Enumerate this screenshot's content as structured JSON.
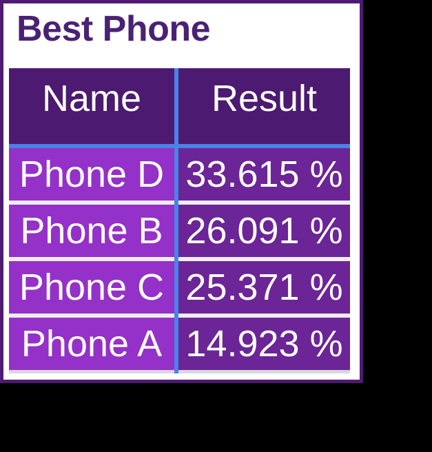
{
  "widget": {
    "title": "Best Phone"
  },
  "table": {
    "headers": {
      "name": "Name",
      "result": "Result"
    },
    "rows": [
      {
        "name": "Phone D",
        "result": "33.615 %"
      },
      {
        "name": "Phone B",
        "result": "26.091 %"
      },
      {
        "name": "Phone C",
        "result": "25.371 %"
      },
      {
        "name": "Phone A",
        "result": "14.923 %"
      }
    ]
  },
  "colors": {
    "canvas_background": "#000000",
    "widget_background": "#FFFFFF",
    "widget_border": "#4E1A73",
    "title_text": "#4A2173",
    "header_background": "#4C1A71",
    "name_cell_background": "#9431C8",
    "result_cell_background": "#6B2596",
    "divider_blue": "#4A82E8",
    "row_separator": "#EFEDF2",
    "bottom_line": "#DAD8DE",
    "cell_text": "#FFFFFF"
  },
  "chart_data": {
    "type": "table",
    "title": "Best Phone",
    "columns": [
      "Name",
      "Result"
    ],
    "rows": [
      [
        "Phone D",
        "33.615 %"
      ],
      [
        "Phone B",
        "26.091 %"
      ],
      [
        "Phone C",
        "25.371 %"
      ],
      [
        "Phone A",
        "14.923 %"
      ]
    ],
    "values": [
      {
        "name": "Phone D",
        "result_pct": 33.615
      },
      {
        "name": "Phone B",
        "result_pct": 26.091
      },
      {
        "name": "Phone C",
        "result_pct": 25.371
      },
      {
        "name": "Phone A",
        "result_pct": 14.923
      }
    ],
    "unit": "%",
    "layout_hints": "single table visual, purple theme, sorted by result descending, blue column divider, black page background"
  }
}
